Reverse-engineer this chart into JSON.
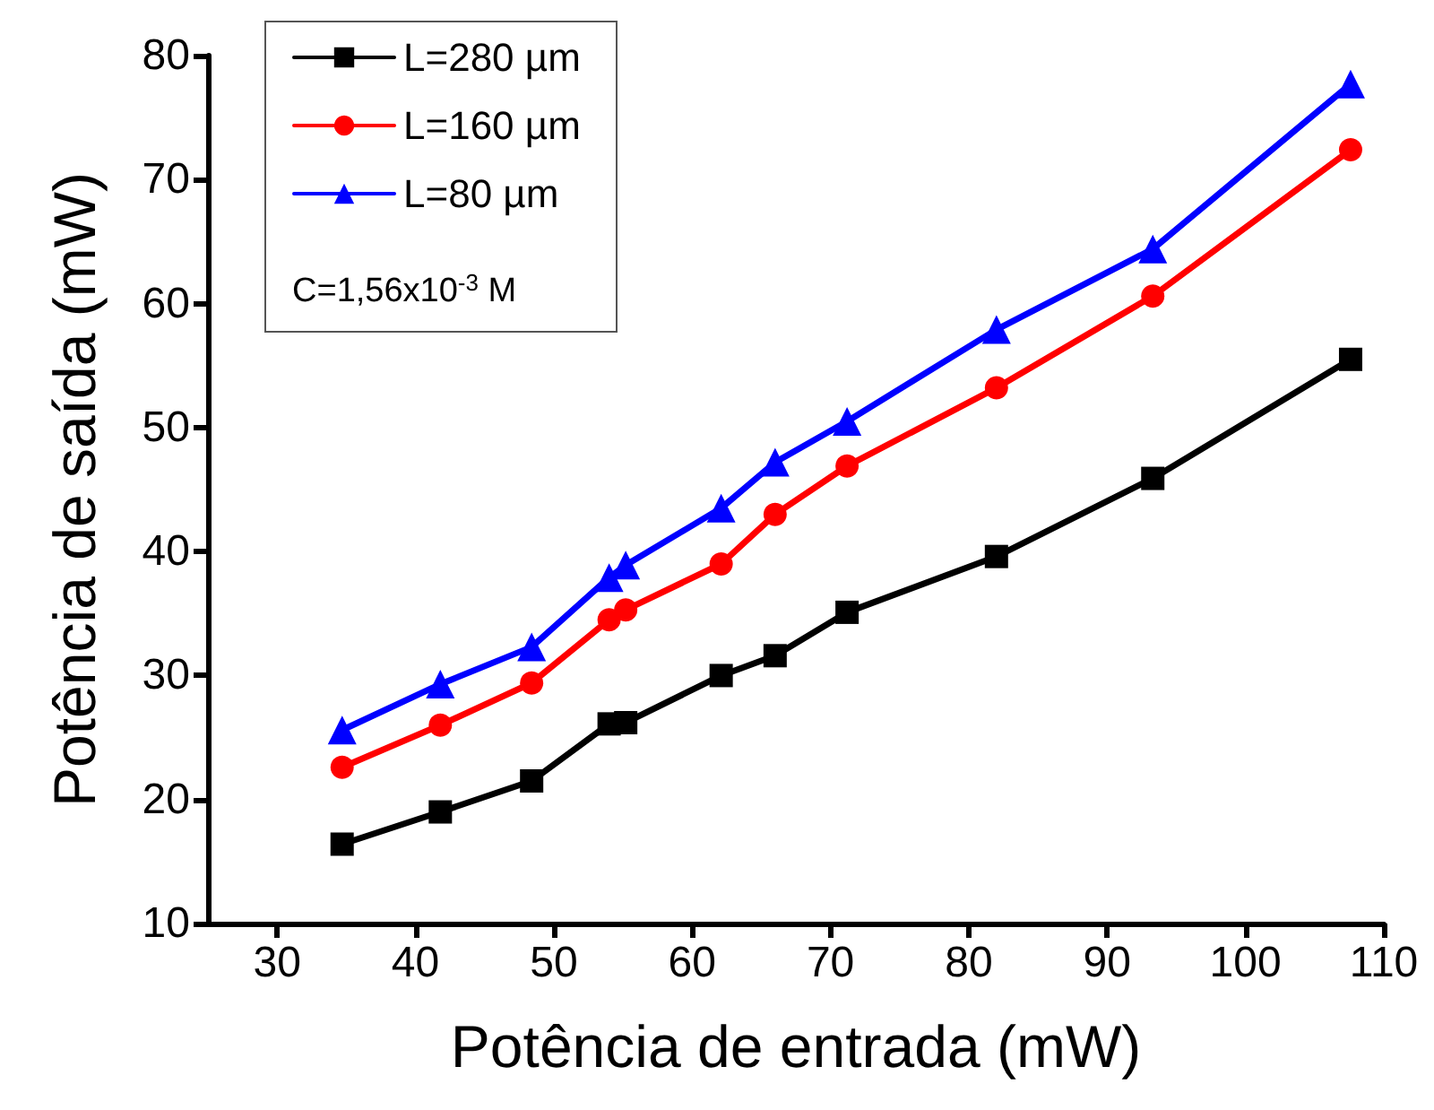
{
  "chart_data": {
    "type": "line",
    "xlabel": "Potência de entrada (mW)",
    "ylabel": "Potência de saída (mW)",
    "x": [
      34.7,
      41.8,
      48.4,
      54.0,
      55.2,
      62.1,
      66.0,
      71.2,
      82.0,
      93.3,
      107.6
    ],
    "series": [
      {
        "name": "L=280 µm",
        "color": "#000000",
        "marker": "square",
        "values": [
          16.4,
          19.0,
          21.5,
          26.1,
          26.2,
          30.0,
          31.6,
          35.1,
          39.6,
          45.9,
          55.5
        ]
      },
      {
        "name": "L=160 µm",
        "color": "#ff0000",
        "marker": "circle",
        "values": [
          22.6,
          26.0,
          29.4,
          34.5,
          35.3,
          39.0,
          43.0,
          46.9,
          53.2,
          60.6,
          72.4
        ]
      },
      {
        "name": "L=80 µm",
        "color": "#0000ff",
        "marker": "triangle",
        "values": [
          25.6,
          29.3,
          32.3,
          37.9,
          38.9,
          43.5,
          47.2,
          50.5,
          57.9,
          64.4,
          77.7
        ]
      }
    ],
    "annotations": [
      "C=1,56x10$^{-3}$ M"
    ],
    "xlim": [
      25,
      110
    ],
    "xticks": [
      30,
      40,
      50,
      60,
      70,
      80,
      90,
      100,
      110
    ],
    "ylim": [
      10,
      80
    ],
    "yticks": [
      10,
      20,
      30,
      40,
      50,
      60,
      70,
      80
    ],
    "grid": false,
    "legend": "top left",
    "line_style": "solid"
  }
}
